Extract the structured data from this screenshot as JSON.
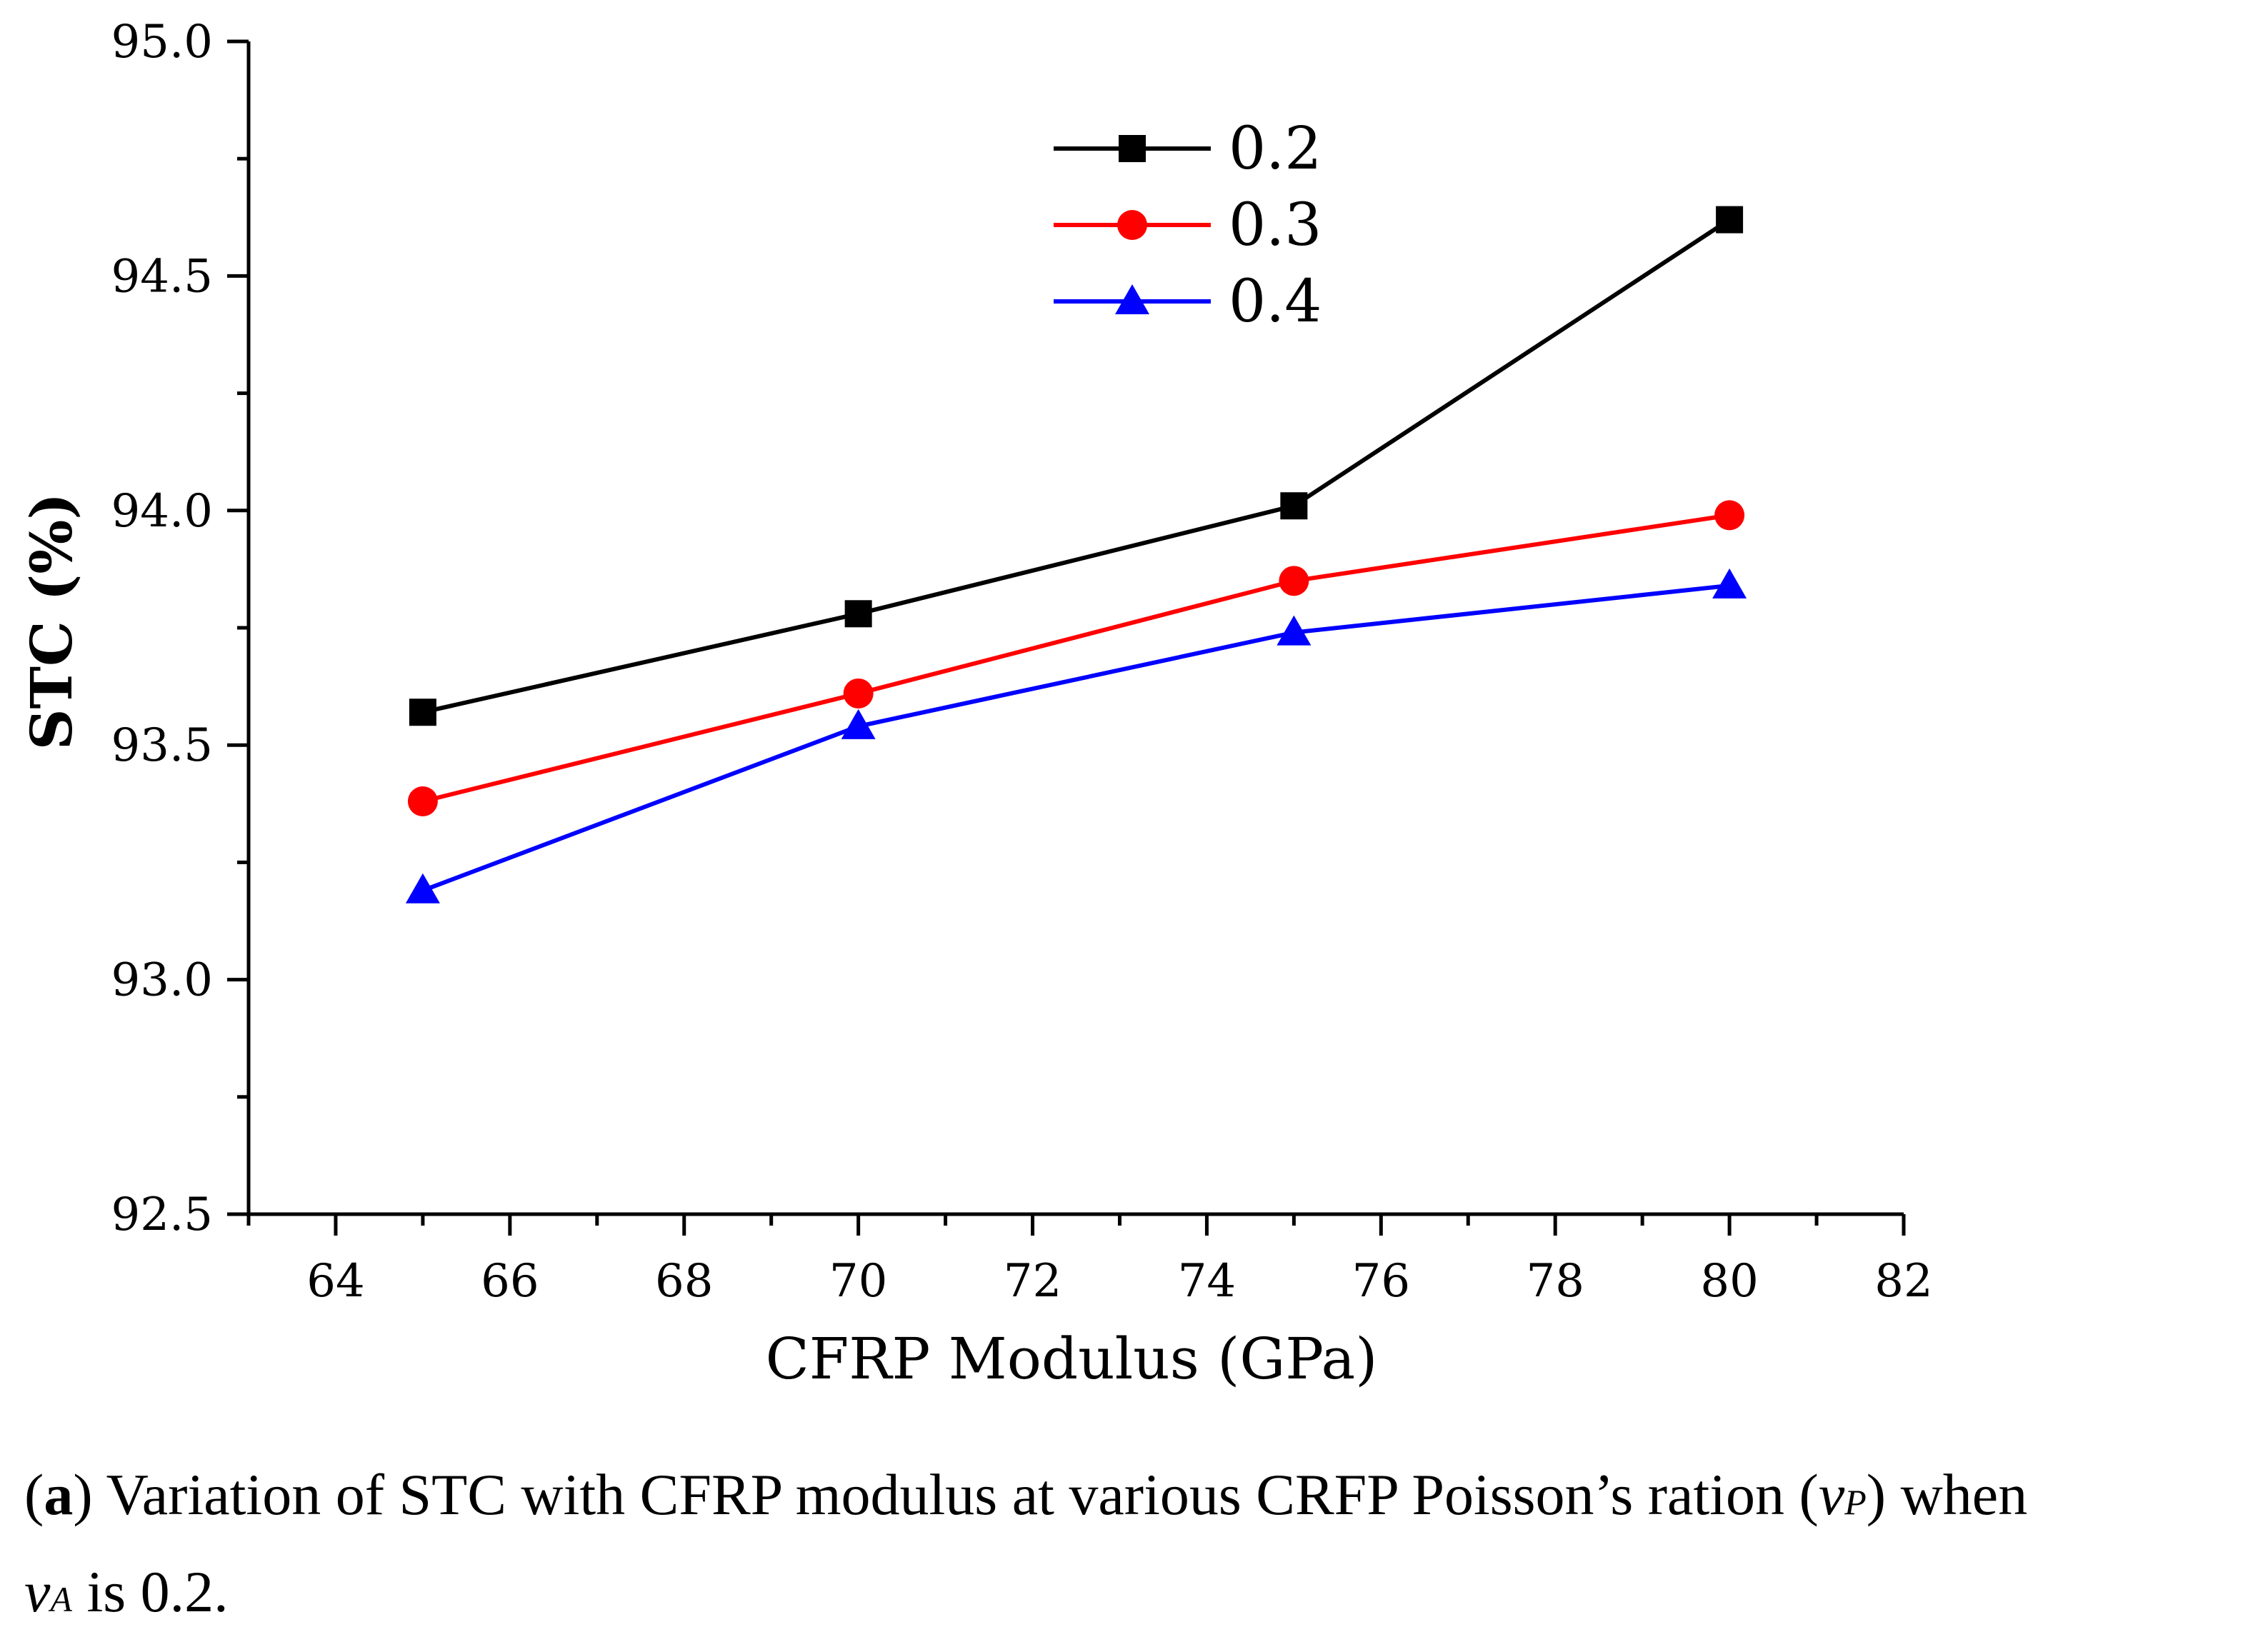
{
  "chart_data": {
    "type": "line",
    "xlabel": "CFRP Modulus (GPa)",
    "ylabel": "STC (%)",
    "xlim": [
      63,
      82
    ],
    "ylim": [
      92.5,
      95.0
    ],
    "x_ticks": [
      64,
      66,
      68,
      70,
      72,
      74,
      76,
      78,
      80,
      82
    ],
    "y_ticks": [
      "92.5",
      "93.0",
      "93.5",
      "94.0",
      "94.5",
      "95.0"
    ],
    "x": [
      65,
      70,
      75,
      80
    ],
    "legend_position": "top-center",
    "series": [
      {
        "name": "0.2",
        "color": "#000000",
        "marker": "square",
        "values": [
          93.57,
          93.78,
          94.01,
          94.62
        ]
      },
      {
        "name": "0.3",
        "color": "#ff0000",
        "marker": "circle",
        "values": [
          93.38,
          93.61,
          93.85,
          93.99
        ]
      },
      {
        "name": "0.4",
        "color": "#0000ff",
        "marker": "triangle",
        "values": [
          93.19,
          93.54,
          93.74,
          93.84
        ]
      }
    ]
  },
  "caption": {
    "open_paren": "(",
    "label": "a",
    "text_1": ") Variation of STC with CFRP modulus at various CRFP Poisson’s ration (",
    "sym_1": "v",
    "sub_1": "P",
    "text_2": ") when",
    "sym_2": "v",
    "sub_2": "A",
    "text_3": " is 0.2."
  }
}
